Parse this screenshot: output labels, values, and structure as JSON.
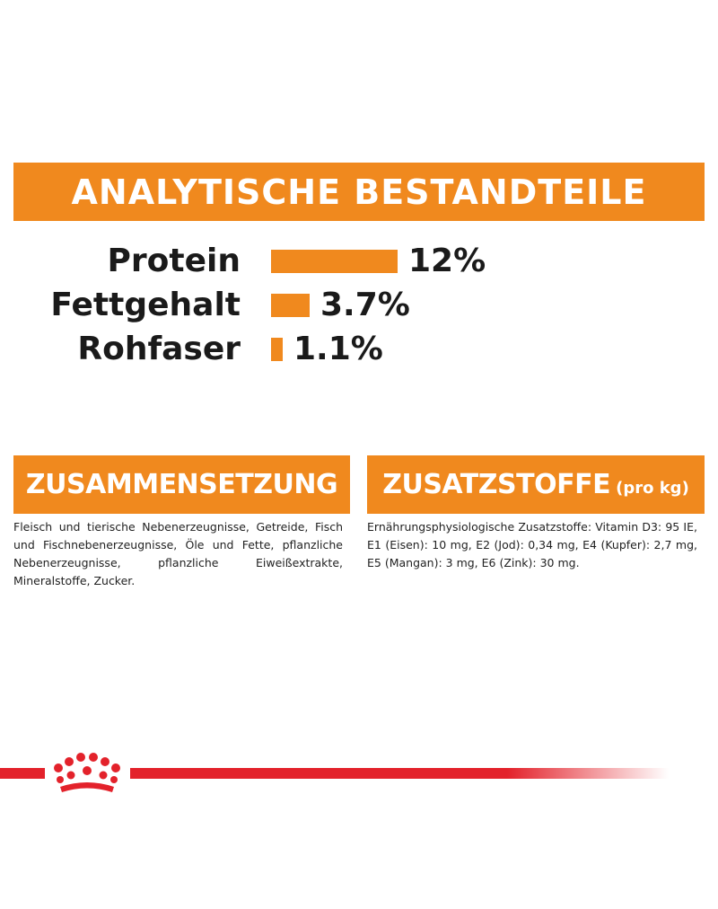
{
  "analysis": {
    "title": "ANALYTISCHE BESTANDTEILE",
    "accent_color": "#f0891e",
    "nutrients": [
      {
        "label": "Protein",
        "value_text": "12%",
        "value": 12
      },
      {
        "label": "Fettgehalt",
        "value_text": "3.7%",
        "value": 3.7
      },
      {
        "label": "Rohfaser",
        "value_text": "1.1%",
        "value": 1.1
      }
    ]
  },
  "composition": {
    "title": "ZUSAMMENSETZUNG",
    "text": "Fleisch und tierische Nebenerzeugnisse, Getreide, Fisch und Fischnebenerzeugnisse, Öle und Fette, pflanzliche Nebenerzeugnisse, pflanzliche Eiweißextrakte, Mineralstoffe, Zucker."
  },
  "additives": {
    "title": "ZUSATZSTOFFE",
    "title_suffix": "(pro kg)",
    "text": "Ernährungsphysiologische Zusatzstoffe: Vitamin D3: 95 IE, E1 (Eisen): 10 mg, E2 (Jod): 0,34 mg, E4 (Kupfer): 2,7 mg, E5 (Mangan): 3 mg, E6 (Zink): 30 mg."
  },
  "footer": {
    "logo_icon": "royal-crown-icon",
    "brand_color": "#e3222b"
  }
}
